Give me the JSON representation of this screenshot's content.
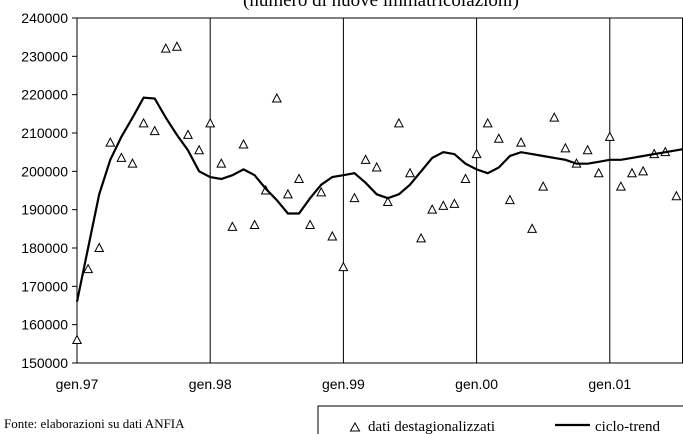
{
  "chart_data": {
    "type": "scatter",
    "title": "(numero di nuove immatricolazioni)",
    "xlabel": "",
    "ylabel": "",
    "ylim": [
      150000,
      240000
    ],
    "yticks": [
      150000,
      160000,
      170000,
      180000,
      190000,
      200000,
      210000,
      220000,
      230000,
      240000
    ],
    "xtick_labels": [
      "gen.97",
      "gen.98",
      "gen.99",
      "gen.00",
      "gen.01"
    ],
    "grid": "vertical lines at January of each year",
    "legend_position": "bottom-right",
    "series": [
      {
        "name": "dati destagionalizzati",
        "marker": "triangle",
        "x": [
          "1997-01",
          "1997-02",
          "1997-03",
          "1997-04",
          "1997-05",
          "1997-06",
          "1997-07",
          "1997-08",
          "1997-09",
          "1997-10",
          "1997-11",
          "1997-12",
          "1998-01",
          "1998-02",
          "1998-03",
          "1998-04",
          "1998-05",
          "1998-06",
          "1998-07",
          "1998-08",
          "1998-09",
          "1998-10",
          "1998-11",
          "1998-12",
          "1999-01",
          "1999-02",
          "1999-03",
          "1999-04",
          "1999-05",
          "1999-06",
          "1999-07",
          "1999-08",
          "1999-09",
          "1999-10",
          "1999-11",
          "1999-12",
          "2000-01",
          "2000-02",
          "2000-03",
          "2000-04",
          "2000-05",
          "2000-06",
          "2000-07",
          "2000-08",
          "2000-09",
          "2000-10",
          "2000-11",
          "2000-12",
          "2001-01",
          "2001-02",
          "2001-03",
          "2001-04",
          "2001-05",
          "2001-06",
          "2001-07",
          "2001-08"
        ],
        "values": [
          156000,
          174500,
          180000,
          207500,
          203500,
          202000,
          212500,
          210500,
          232000,
          232500,
          209500,
          205500,
          212500,
          202000,
          185500,
          207000,
          186000,
          195000,
          219000,
          194000,
          198000,
          186000,
          194500,
          183000,
          175000,
          193000,
          203000,
          201000,
          192000,
          212500,
          199500,
          182500,
          190000,
          191000,
          191500,
          198000,
          204500,
          212500,
          208500,
          192500,
          207500,
          185000,
          196000,
          214000,
          206000,
          202000,
          205500,
          199500,
          209000,
          196000,
          199500,
          200000,
          204500,
          205000,
          193500,
          206500
        ]
      },
      {
        "name": "ciclo-trend",
        "marker": "line",
        "x": [
          "1997-01",
          "1997-02",
          "1997-03",
          "1997-04",
          "1997-05",
          "1997-06",
          "1997-07",
          "1997-08",
          "1997-09",
          "1997-10",
          "1997-11",
          "1997-12",
          "1998-01",
          "1998-02",
          "1998-03",
          "1998-04",
          "1998-05",
          "1998-06",
          "1998-07",
          "1998-08",
          "1998-09",
          "1998-10",
          "1998-11",
          "1998-12",
          "1999-01",
          "1999-02",
          "1999-03",
          "1999-04",
          "1999-05",
          "1999-06",
          "1999-07",
          "1999-08",
          "1999-09",
          "1999-10",
          "1999-11",
          "1999-12",
          "2000-01",
          "2000-02",
          "2000-03",
          "2000-04",
          "2000-05",
          "2000-06",
          "2000-07",
          "2000-08",
          "2000-09",
          "2000-10",
          "2000-11",
          "2000-12",
          "2001-01",
          "2001-02",
          "2001-03",
          "2001-04",
          "2001-05",
          "2001-06",
          "2001-07",
          "2001-08"
        ],
        "values": [
          166000,
          180000,
          194000,
          203000,
          209000,
          214000,
          219200,
          219000,
          214000,
          209500,
          205500,
          200000,
          198500,
          198000,
          199000,
          200500,
          199000,
          195500,
          192500,
          189000,
          189000,
          193000,
          196500,
          198500,
          199000,
          199500,
          197000,
          194000,
          193000,
          194000,
          196500,
          200000,
          203500,
          205000,
          204500,
          202000,
          200500,
          199500,
          201000,
          204000,
          205000,
          204500,
          204000,
          203500,
          203000,
          202000,
          202000,
          202500,
          203000,
          203000,
          203500,
          204000,
          204500,
          205000,
          205500,
          206000
        ]
      }
    ]
  },
  "source_note": "Fonte: elaborazioni su dati ANFIA"
}
